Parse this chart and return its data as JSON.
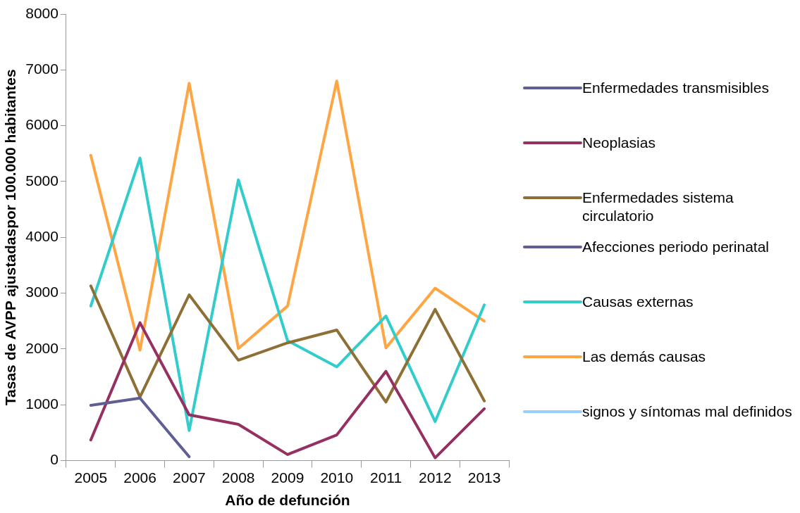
{
  "chart_data": {
    "type": "line",
    "xlabel": "Año de defunción",
    "ylabel": "Tasas de AVPP ajustadaspor 100.000 habitantes",
    "categories": [
      "2005",
      "2006",
      "2007",
      "2008",
      "2009",
      "2010",
      "2011",
      "2012",
      "2013"
    ],
    "ylim": [
      0,
      8000
    ],
    "yticks": [
      0,
      1000,
      2000,
      3000,
      4000,
      5000,
      6000,
      7000,
      8000
    ],
    "grid": false,
    "legend": "right",
    "marker": "none",
    "line_style": "solid",
    "series": [
      {
        "name": "Enfermedades transmisibles",
        "color": "#5f5f96",
        "values": [
          990,
          1120,
          70,
          null,
          null,
          null,
          null,
          null,
          null
        ]
      },
      {
        "name": "Neoplasias",
        "color": "#953060",
        "values": [
          370,
          2470,
          820,
          650,
          110,
          460,
          1600,
          50,
          930
        ]
      },
      {
        "name": "Enfermedades sistema circulatorio",
        "color": "#8e6f35",
        "values": [
          3130,
          1140,
          2970,
          1800,
          2110,
          2340,
          1050,
          2710,
          1070
        ]
      },
      {
        "name": "Afecciones periodo perinatal",
        "color": "#5f5f96",
        "values": [
          null,
          null,
          null,
          null,
          null,
          null,
          null,
          null,
          null
        ]
      },
      {
        "name": "Causas externas",
        "color": "#33cccc",
        "values": [
          2770,
          5420,
          540,
          5030,
          2150,
          1680,
          2590,
          700,
          2790
        ]
      },
      {
        "name": "Las demás causas",
        "color": "#ffa544",
        "values": [
          5470,
          1980,
          6760,
          2010,
          2770,
          6800,
          2020,
          3090,
          2500
        ]
      },
      {
        "name": "signos y síntomas mal definidos",
        "color": "#99ccff",
        "values": [
          null,
          null,
          null,
          null,
          null,
          null,
          null,
          null,
          null
        ]
      }
    ]
  }
}
